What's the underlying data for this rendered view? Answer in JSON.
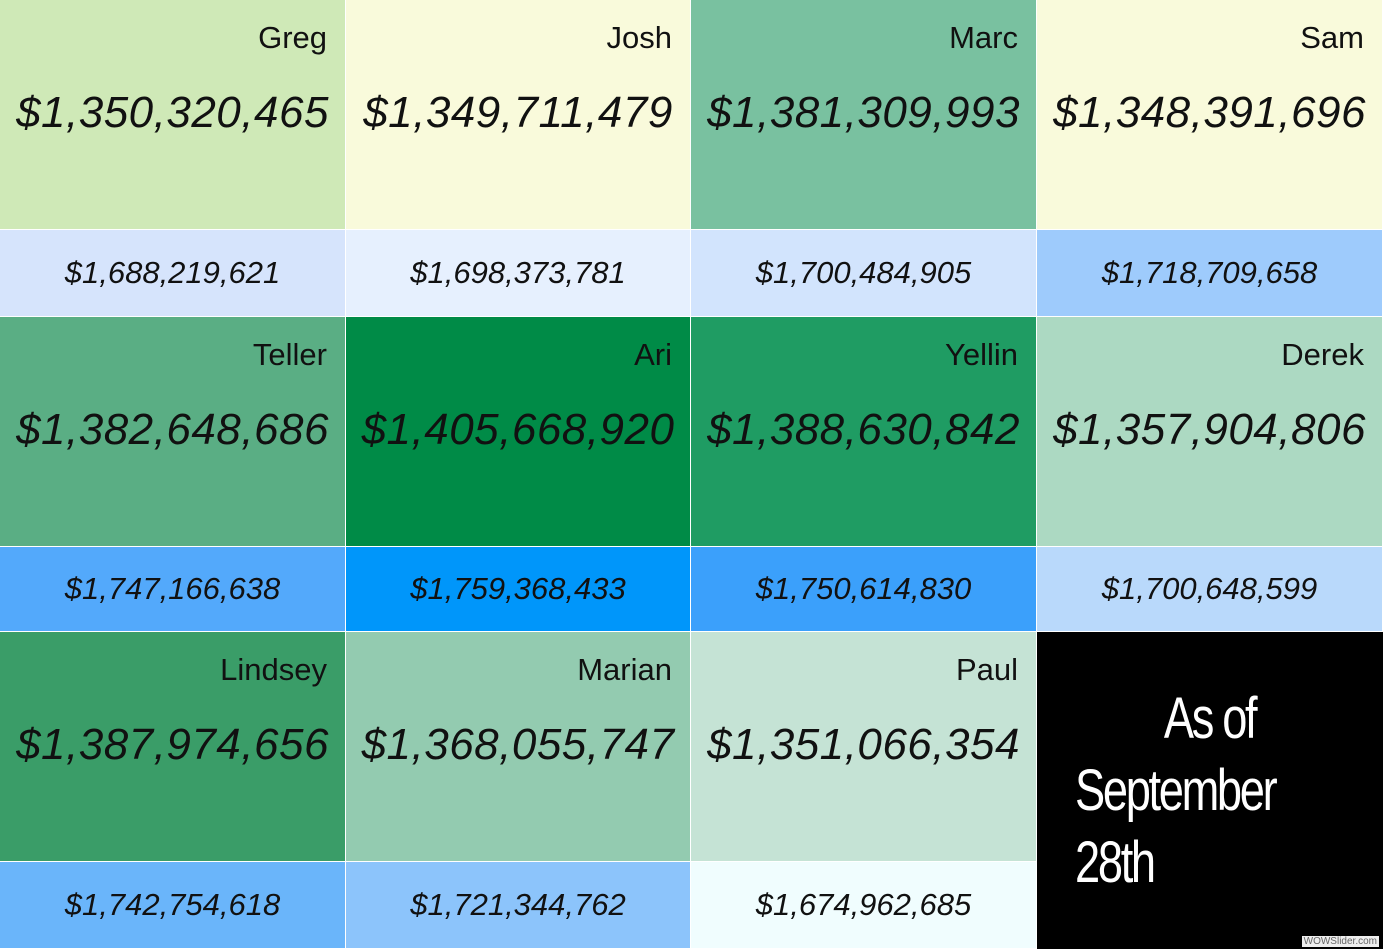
{
  "tiles": [
    {
      "name": "Greg",
      "value": "$1,350,320,465",
      "sub_value": "$1,688,219,621",
      "color": "#cfe9b7",
      "sub_color": "#d6e4fc"
    },
    {
      "name": "Josh",
      "value": "$1,349,711,479",
      "sub_value": "$1,698,373,781",
      "color": "#f9fadb",
      "sub_color": "#e6f0fe"
    },
    {
      "name": "Marc",
      "value": "$1,381,309,993",
      "sub_value": "$1,700,484,905",
      "color": "#79c1a0",
      "sub_color": "#d2e4fd"
    },
    {
      "name": "Sam",
      "value": "$1,348,391,696",
      "sub_value": "$1,718,709,658",
      "color": "#f9fadb",
      "sub_color": "#9ecbfc"
    },
    {
      "name": "Teller",
      "value": "$1,382,648,686",
      "sub_value": "$1,747,166,638",
      "color": "#5aae84",
      "sub_color": "#53a9fb"
    },
    {
      "name": "Ari",
      "value": "$1,405,668,920",
      "sub_value": "$1,759,368,433",
      "color": "#008b47",
      "sub_color": "#0096fa"
    },
    {
      "name": "Yellin",
      "value": "$1,388,630,842",
      "sub_value": "$1,750,614,830",
      "color": "#1f9c63",
      "sub_color": "#3ba0fb"
    },
    {
      "name": "Derek",
      "value": "$1,357,904,806",
      "sub_value": "$1,700,648,599",
      "color": "#acd9c2",
      "sub_color": "#b9d9fb"
    },
    {
      "name": "Lindsey",
      "value": "$1,387,974,656",
      "sub_value": "$1,742,754,618",
      "color": "#3a9d68",
      "sub_color": "#6ab5fa"
    },
    {
      "name": "Marian",
      "value": "$1,368,055,747",
      "sub_value": "$1,721,344,762",
      "color": "#93cbb0",
      "sub_color": "#8cc4fb"
    },
    {
      "name": "Paul",
      "value": "$1,351,066,354",
      "sub_value": "$1,674,962,685",
      "color": "#c5e3d5",
      "sub_color": "#f0fdfe"
    }
  ],
  "note": {
    "line1": "As of",
    "line2": "September 28th"
  },
  "watermark": "WOWSlider.com"
}
